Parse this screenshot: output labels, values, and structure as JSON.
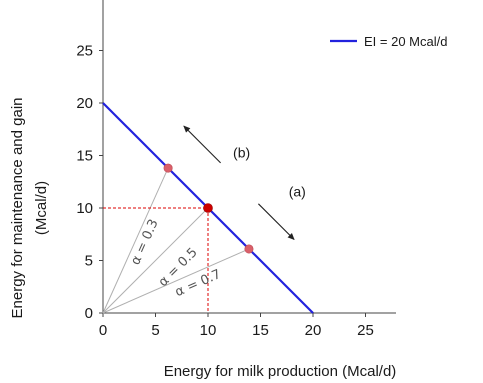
{
  "chart_data": {
    "type": "line",
    "xlabel": "Energy for milk production (Mcal/d)",
    "ylabel_lines": [
      "Energy for maintenance and gain",
      "(Mcal/d)"
    ],
    "xlim": [
      0,
      30
    ],
    "ylim": [
      0,
      30
    ],
    "xticks": [
      "0",
      "5",
      "10",
      "15",
      "20",
      "25"
    ],
    "yticks": [
      "0",
      "5",
      "10",
      "15",
      "20",
      "25"
    ],
    "grid": false,
    "legend_position": "top-right",
    "series": [
      {
        "name": "EI = 20 Mcal/d",
        "color": "#2222dd",
        "x": [
          0,
          20
        ],
        "y": [
          20,
          0
        ]
      }
    ],
    "points": [
      {
        "x": 6.2,
        "y": 13.8,
        "color": "#d9606a"
      },
      {
        "x": 10,
        "y": 10,
        "color": "#cc0000"
      },
      {
        "x": 13.9,
        "y": 6.1,
        "color": "#d9606a"
      }
    ],
    "ray_color": "#b0b0b0",
    "dashed_guide_color": "#dd0000",
    "rays": [
      {
        "label": "α = 0.3",
        "x": 6.2,
        "y": 13.8
      },
      {
        "label": "α = 0.5",
        "x": 10,
        "y": 10
      },
      {
        "label": "α = 0.7",
        "x": 13.9,
        "y": 6.1
      }
    ],
    "annotations": [
      {
        "label": "(b)",
        "x": 13.2,
        "y": 14.8
      },
      {
        "label": "(a)",
        "x": 18.5,
        "y": 11.1
      }
    ]
  }
}
